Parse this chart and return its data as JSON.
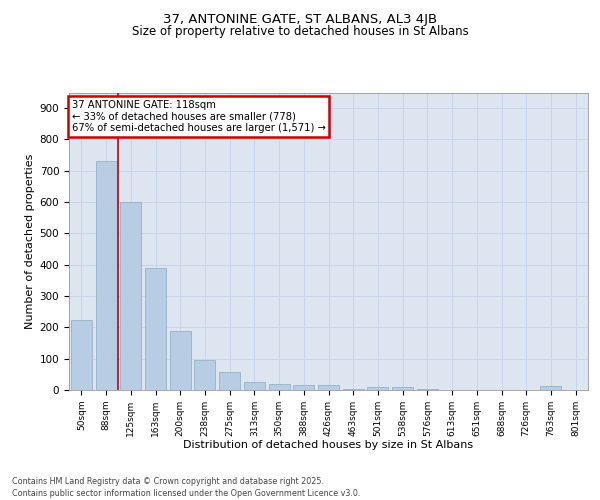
{
  "title1": "37, ANTONINE GATE, ST ALBANS, AL3 4JB",
  "title2": "Size of property relative to detached houses in St Albans",
  "xlabel": "Distribution of detached houses by size in St Albans",
  "ylabel": "Number of detached properties",
  "categories": [
    "50sqm",
    "88sqm",
    "125sqm",
    "163sqm",
    "200sqm",
    "238sqm",
    "275sqm",
    "313sqm",
    "350sqm",
    "388sqm",
    "426sqm",
    "463sqm",
    "501sqm",
    "538sqm",
    "576sqm",
    "613sqm",
    "651sqm",
    "688sqm",
    "726sqm",
    "763sqm",
    "801sqm"
  ],
  "values": [
    225,
    730,
    600,
    390,
    190,
    97,
    57,
    27,
    20,
    17,
    17,
    4,
    10,
    10,
    4,
    0,
    0,
    0,
    0,
    12,
    0
  ],
  "bar_color": "#b8cce4",
  "bar_edge_color": "#8aabbf",
  "vline_color": "#cc0000",
  "annotation_text": "37 ANTONINE GATE: 118sqm\n← 33% of detached houses are smaller (778)\n67% of semi-detached houses are larger (1,571) →",
  "annotation_edge_color": "#cc0000",
  "ylim": [
    0,
    950
  ],
  "yticks": [
    0,
    100,
    200,
    300,
    400,
    500,
    600,
    700,
    800,
    900
  ],
  "grid_color": "#c8d4e8",
  "background_color": "#dde5f0",
  "footer_line1": "Contains HM Land Registry data © Crown copyright and database right 2025.",
  "footer_line2": "Contains public sector information licensed under the Open Government Licence v3.0."
}
